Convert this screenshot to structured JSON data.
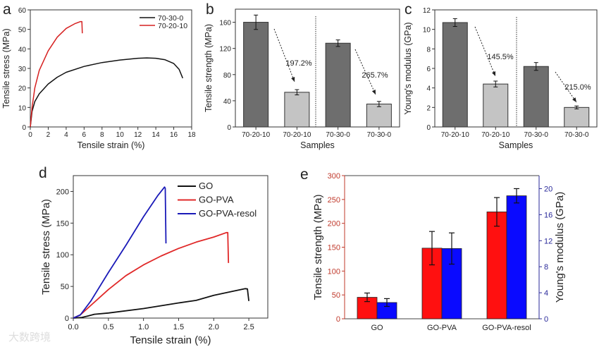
{
  "chart_data": [
    {
      "panel": "a",
      "type": "line",
      "xlabel": "Tensile strain (%)",
      "ylabel": "Tensile stress (MPa)",
      "xlim": [
        0,
        18
      ],
      "ylim": [
        0,
        60
      ],
      "xticks": [
        "0",
        "2",
        "4",
        "6",
        "8",
        "10",
        "12",
        "14",
        "16",
        "18"
      ],
      "yticks": [
        "0",
        "10",
        "20",
        "30",
        "40",
        "50",
        "60"
      ],
      "legend_position": "top-right",
      "series": [
        {
          "name": "70-30-0",
          "color": "#111111",
          "x": [
            0,
            0.2,
            0.5,
            1,
            2,
            3,
            4,
            6,
            8,
            10,
            12,
            13,
            14,
            15,
            16,
            16.6,
            17
          ],
          "y": [
            0,
            8,
            13,
            17,
            22,
            25.5,
            28,
            31,
            33,
            34.3,
            35.2,
            35.4,
            35.2,
            34.5,
            32.5,
            29.5,
            25
          ]
        },
        {
          "name": "70-20-10",
          "color": "#d62020",
          "x": [
            0,
            0.2,
            0.5,
            1,
            2,
            3,
            4,
            5,
            5.6,
            5.75,
            5.8
          ],
          "y": [
            0,
            10,
            20,
            29,
            39,
            46,
            50.5,
            53,
            54,
            54,
            48
          ]
        }
      ]
    },
    {
      "panel": "b",
      "type": "bar",
      "xlabel": "Samples",
      "ylabel": "Tensile strength (MPa)",
      "ylim": [
        0,
        180
      ],
      "yticks": [
        "0",
        "40",
        "80",
        "120",
        "160"
      ],
      "categories": [
        "70-20-10",
        "70-20-10",
        "70-30-0",
        "70-30-0"
      ],
      "values": [
        160,
        53,
        128,
        35
      ],
      "errors": [
        11,
        4,
        5,
        4
      ],
      "colors": [
        "#6e6e6e",
        "#c4c4c4",
        "#6e6e6e",
        "#c4c4c4"
      ],
      "annotations": [
        "197.2%",
        "265.7%"
      ]
    },
    {
      "panel": "c",
      "type": "bar",
      "xlabel": "Samples",
      "ylabel": "Young's modulus (GPa)",
      "ylim": [
        0,
        12
      ],
      "yticks": [
        "0",
        "2",
        "4",
        "6",
        "8",
        "10",
        "12"
      ],
      "categories": [
        "70-20-10",
        "70-20-10",
        "70-30-0",
        "70-30-0"
      ],
      "values": [
        10.7,
        4.4,
        6.2,
        2.0
      ],
      "errors": [
        0.4,
        0.3,
        0.4,
        0.15
      ],
      "colors": [
        "#6e6e6e",
        "#c4c4c4",
        "#6e6e6e",
        "#c4c4c4"
      ],
      "annotations": [
        "145.5%",
        "215.0%"
      ]
    },
    {
      "panel": "d",
      "type": "line",
      "xlabel": "Tensile strain (%)",
      "ylabel": "Tensile stress (MPa)",
      "xlim": [
        0,
        2.77
      ],
      "ylim": [
        0,
        225
      ],
      "xticks": [
        "0.0",
        "0.5",
        "1.0",
        "1.5",
        "2.0",
        "2.5"
      ],
      "yticks": [
        "0",
        "50",
        "100",
        "150",
        "200"
      ],
      "legend_position": "top-right",
      "series": [
        {
          "name": "GO",
          "color": "#111111",
          "x": [
            0,
            0.12,
            0.2,
            0.3,
            0.5,
            1,
            1.5,
            1.75,
            2,
            2.3,
            2.45,
            2.48,
            2.5
          ],
          "y": [
            0,
            1,
            3,
            6,
            8,
            15,
            24,
            28,
            36,
            43,
            46.5,
            46,
            27
          ]
        },
        {
          "name": "GO-PVA",
          "color": "#e02828",
          "x": [
            0,
            0.1,
            0.25,
            0.5,
            0.75,
            1,
            1.25,
            1.5,
            1.75,
            2,
            2.18,
            2.2,
            2.21
          ],
          "y": [
            0,
            5,
            20,
            45,
            67,
            84,
            98,
            110,
            120,
            128,
            135,
            135,
            87
          ]
        },
        {
          "name": "GO-PVA-resol",
          "color": "#1a1ab8",
          "x": [
            0,
            0.1,
            0.25,
            0.5,
            0.75,
            1,
            1.2,
            1.3,
            1.31,
            1.32
          ],
          "y": [
            0,
            5,
            27,
            72,
            115,
            160,
            193,
            207,
            205,
            118
          ]
        }
      ]
    },
    {
      "panel": "e",
      "type": "bar",
      "ylabel": "Tensile strength (MPa)",
      "y2label": "Young's modulus (GPa)",
      "ylim": [
        0,
        300
      ],
      "y2lim": [
        0,
        22
      ],
      "yticks": [
        "0",
        "50",
        "100",
        "150",
        "200",
        "250",
        "300"
      ],
      "y2ticks": [
        "0",
        "4",
        "8",
        "12",
        "16",
        "20"
      ],
      "categories": [
        "GO",
        "GO-PVA",
        "GO-PVA-resol"
      ],
      "series": [
        {
          "name": "Tensile strength",
          "axis": "left",
          "color": "#ff1010",
          "values": [
            45,
            148,
            224
          ],
          "errors": [
            9,
            35,
            30
          ]
        },
        {
          "name": "Young's modulus",
          "axis": "right",
          "color": "#0a0aff",
          "values": [
            2.5,
            10.8,
            18.9
          ],
          "errors": [
            0.6,
            2.4,
            1.1
          ]
        }
      ],
      "left_axis_color": "#c0392b",
      "right_axis_color": "#2a2a9a"
    }
  ],
  "panel_letters": [
    "a",
    "b",
    "c",
    "d",
    "e"
  ],
  "watermark": "大数跨境"
}
